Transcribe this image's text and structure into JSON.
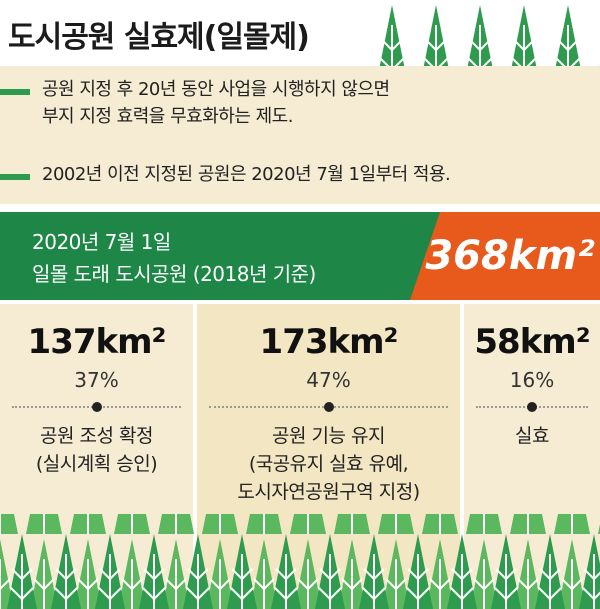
{
  "header": {
    "title": "도시공원 실효제(일몰제)"
  },
  "bullets": [
    {
      "lines": [
        "공원 지정 후 20년 동안 사업을 시행하지 않으면",
        "부지 지정 효력을 무효화하는 제도."
      ]
    },
    {
      "lines": [
        "2002년 이전 지정된 공원은 2020년 7월 1일부터 적용."
      ]
    }
  ],
  "banner": {
    "lines": [
      "2020년 7월 1일",
      "일몰 도래 도시공원 (2018년 기준)"
    ],
    "total": "368km²"
  },
  "columns": [
    {
      "area": "137km²",
      "share": "37%",
      "lines": [
        "공원 조성 확정",
        "(실시계획 승인)"
      ]
    },
    {
      "area": "173km²",
      "share": "47%",
      "lines": [
        "공원 기능 유지",
        "(국공유지 실효 유예,",
        "도시자연공원구역 지정)"
      ]
    },
    {
      "area": "58km²",
      "share": "16%",
      "lines": [
        "실효"
      ]
    }
  ]
}
